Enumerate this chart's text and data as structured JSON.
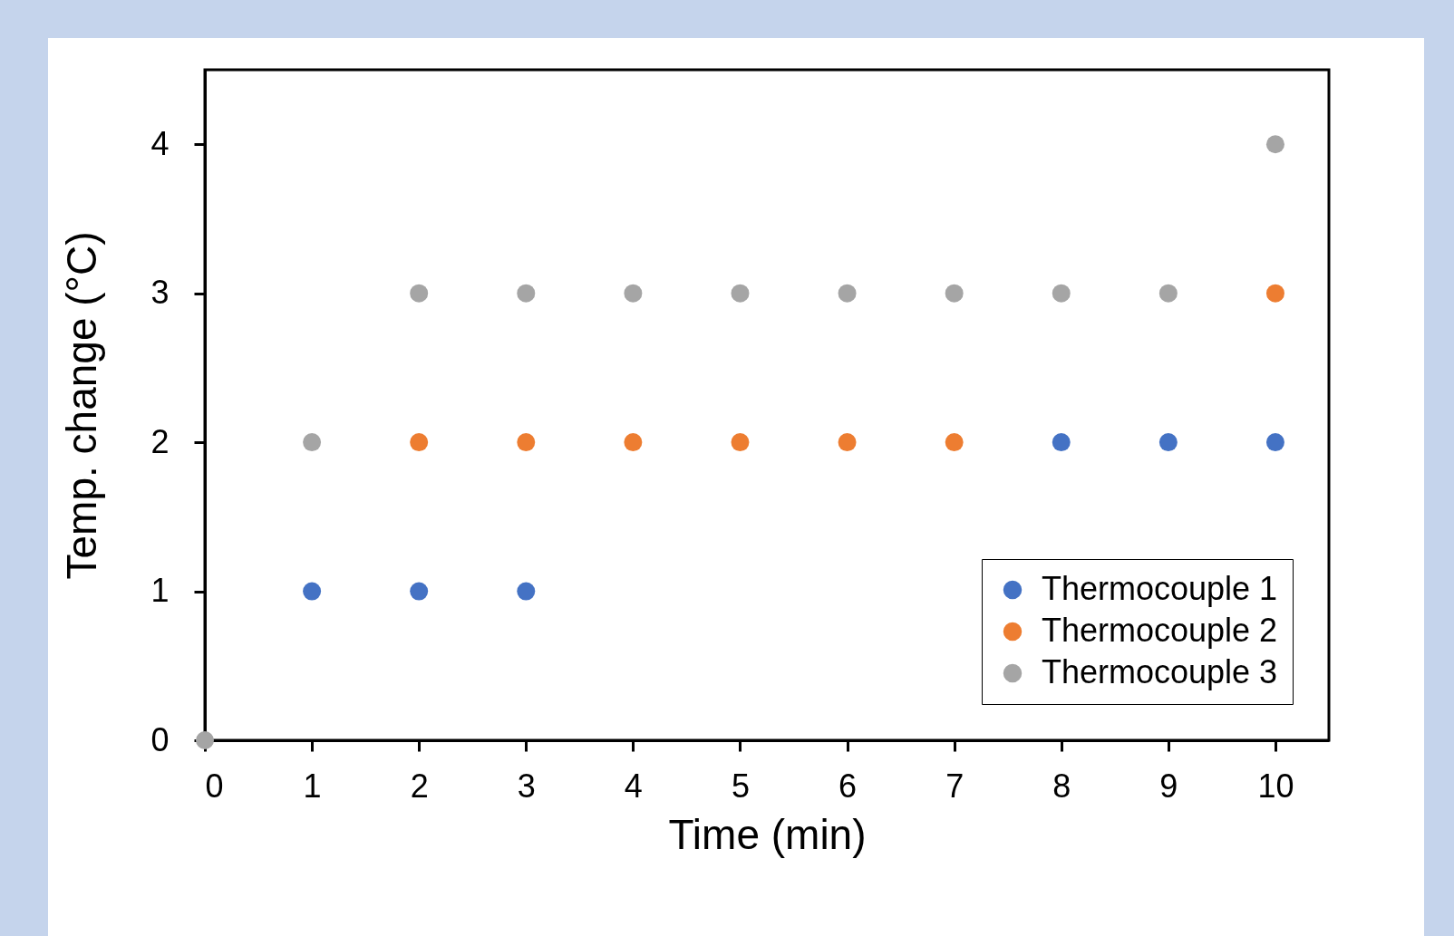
{
  "chart_data": {
    "type": "scatter",
    "xlabel": "Time (min)",
    "ylabel": "Temp. change (°C)",
    "x": [
      0,
      1,
      2,
      3,
      4,
      5,
      6,
      7,
      8,
      9,
      10
    ],
    "series": [
      {
        "name": "Thermocouple 1",
        "color": "#4472c4",
        "values": [
          null,
          1,
          1,
          1,
          null,
          null,
          null,
          null,
          2,
          2,
          2
        ]
      },
      {
        "name": "Thermocouple 2",
        "color": "#ed7d31",
        "values": [
          null,
          null,
          2,
          2,
          2,
          2,
          2,
          2,
          null,
          null,
          3
        ]
      },
      {
        "name": "Thermocouple 3",
        "color": "#a5a5a5",
        "values": [
          0,
          2,
          3,
          3,
          3,
          3,
          3,
          3,
          3,
          3,
          4
        ]
      }
    ],
    "xlim": [
      0,
      10.5
    ],
    "xticks": [
      0,
      1,
      2,
      3,
      4,
      5,
      6,
      7,
      8,
      9,
      10
    ],
    "ylim": [
      0,
      4.5
    ],
    "yticks": [
      0,
      1,
      2,
      3,
      4
    ],
    "grid": false,
    "legend": "bottom right",
    "marker": "circle"
  }
}
